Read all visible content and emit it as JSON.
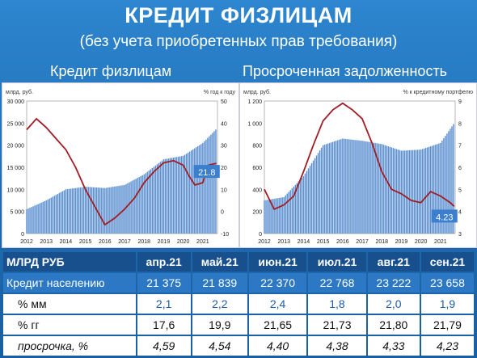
{
  "title": "КРЕДИТ ФИЗЛИЦАМ",
  "subtitle": "(без учета приобретенных прав требования)",
  "panels": {
    "left_title": "Кредит физлицам",
    "right_title": "Просроченная задолженность"
  },
  "chart_data": [
    {
      "type": "bar+line",
      "title": "Кредит физлицам",
      "ylabel_left": "млрд. руб.",
      "ylabel_right": "% год к году",
      "ylim_left": [
        0,
        30000
      ],
      "ylim_right": [
        -10,
        50
      ],
      "yticks_left": [
        "0",
        "5 000",
        "10 000",
        "15 000",
        "20 000",
        "25 000",
        "30 000"
      ],
      "yticks_right": [
        "-10",
        "0",
        "10",
        "20",
        "30",
        "40",
        "50"
      ],
      "xticks": [
        "2012",
        "2013",
        "2014",
        "2015",
        "2016",
        "2017",
        "2018",
        "2019",
        "2020",
        "2021"
      ],
      "xlim": [
        2012,
        2021.75
      ],
      "bar_color": "#5b8fd0",
      "line_color": "#a01d24",
      "bars": {
        "x": [
          2012,
          2013,
          2014,
          2015,
          2016,
          2017,
          2018,
          2019,
          2020,
          2021,
          2021.7
        ],
        "y": [
          5500,
          7500,
          10000,
          10600,
          10300,
          11000,
          13400,
          16800,
          17600,
          20500,
          23700
        ]
      },
      "line": {
        "x": [
          2012,
          2012.5,
          2013,
          2013.5,
          2014,
          2014.5,
          2015,
          2015.5,
          2016,
          2016.5,
          2017,
          2017.5,
          2018,
          2018.5,
          2019,
          2019.5,
          2020,
          2020.3,
          2020.6,
          2021,
          2021.3,
          2021.7
        ],
        "y": [
          37,
          42,
          38,
          33,
          28,
          20,
          10,
          2,
          -6,
          -3,
          1,
          6,
          13,
          18,
          22,
          23,
          21,
          16,
          12,
          13,
          21,
          21.8
        ]
      },
      "last_value_label": "21.8"
    },
    {
      "type": "bar+line",
      "title": "Просроченная задолженность",
      "ylabel_left": "млрд. руб.",
      "ylabel_right": "% к кредитному портфелю",
      "ylim_left": [
        0,
        1200
      ],
      "ylim_right": [
        3,
        9
      ],
      "yticks_left": [
        "0",
        "200",
        "400",
        "600",
        "800",
        "1 000",
        "1 200"
      ],
      "yticks_right": [
        "3",
        "4",
        "5",
        "6",
        "7",
        "8",
        "9"
      ],
      "xticks": [
        "2012",
        "2013",
        "2014",
        "2015",
        "2016",
        "2017",
        "2018",
        "2019",
        "2020",
        "2021"
      ],
      "xlim": [
        2012,
        2021.75
      ],
      "bar_color": "#5b8fd0",
      "line_color": "#a01d24",
      "bars": {
        "x": [
          2012,
          2013,
          2014,
          2015,
          2016,
          2017,
          2018,
          2019,
          2020,
          2021,
          2021.7
        ],
        "y": [
          300,
          330,
          520,
          800,
          860,
          840,
          810,
          750,
          760,
          820,
          1000
        ]
      },
      "line": {
        "x": [
          2012,
          2012.5,
          2013,
          2013.5,
          2014,
          2014.5,
          2015,
          2015.5,
          2016,
          2016.5,
          2017,
          2017.5,
          2018,
          2018.5,
          2019,
          2019.5,
          2020,
          2020.5,
          2021,
          2021.5,
          2021.7
        ],
        "y": [
          5.0,
          4.1,
          4.3,
          4.7,
          5.8,
          7.0,
          8.1,
          8.6,
          8.9,
          8.6,
          8.2,
          7.1,
          5.8,
          5.0,
          4.8,
          4.5,
          4.4,
          4.9,
          4.7,
          4.4,
          4.23
        ]
      },
      "last_value_label": "4.23"
    },
    {
      "type": "table",
      "header": [
        "МЛРД РУБ",
        "апр.21",
        "май.21",
        "июн.21",
        "июл.21",
        "авг.21",
        "сен.21"
      ],
      "rows": [
        {
          "label": "Кредит населению",
          "values": [
            "21 375",
            "21 839",
            "22 370",
            "22 768",
            "23 222",
            "23 658"
          ]
        },
        {
          "label": "% мм",
          "values": [
            "2,1",
            "2,2",
            "2,4",
            "1,8",
            "2,0",
            "1,9"
          ]
        },
        {
          "label": "% гг",
          "values": [
            "17,6",
            "19,9",
            "21,65",
            "21,73",
            "21,80",
            "21,79"
          ]
        },
        {
          "label": "просрочка, %",
          "values": [
            "4,59",
            "4,54",
            "4,40",
            "4,38",
            "4,33",
            "4,23"
          ]
        }
      ]
    }
  ]
}
